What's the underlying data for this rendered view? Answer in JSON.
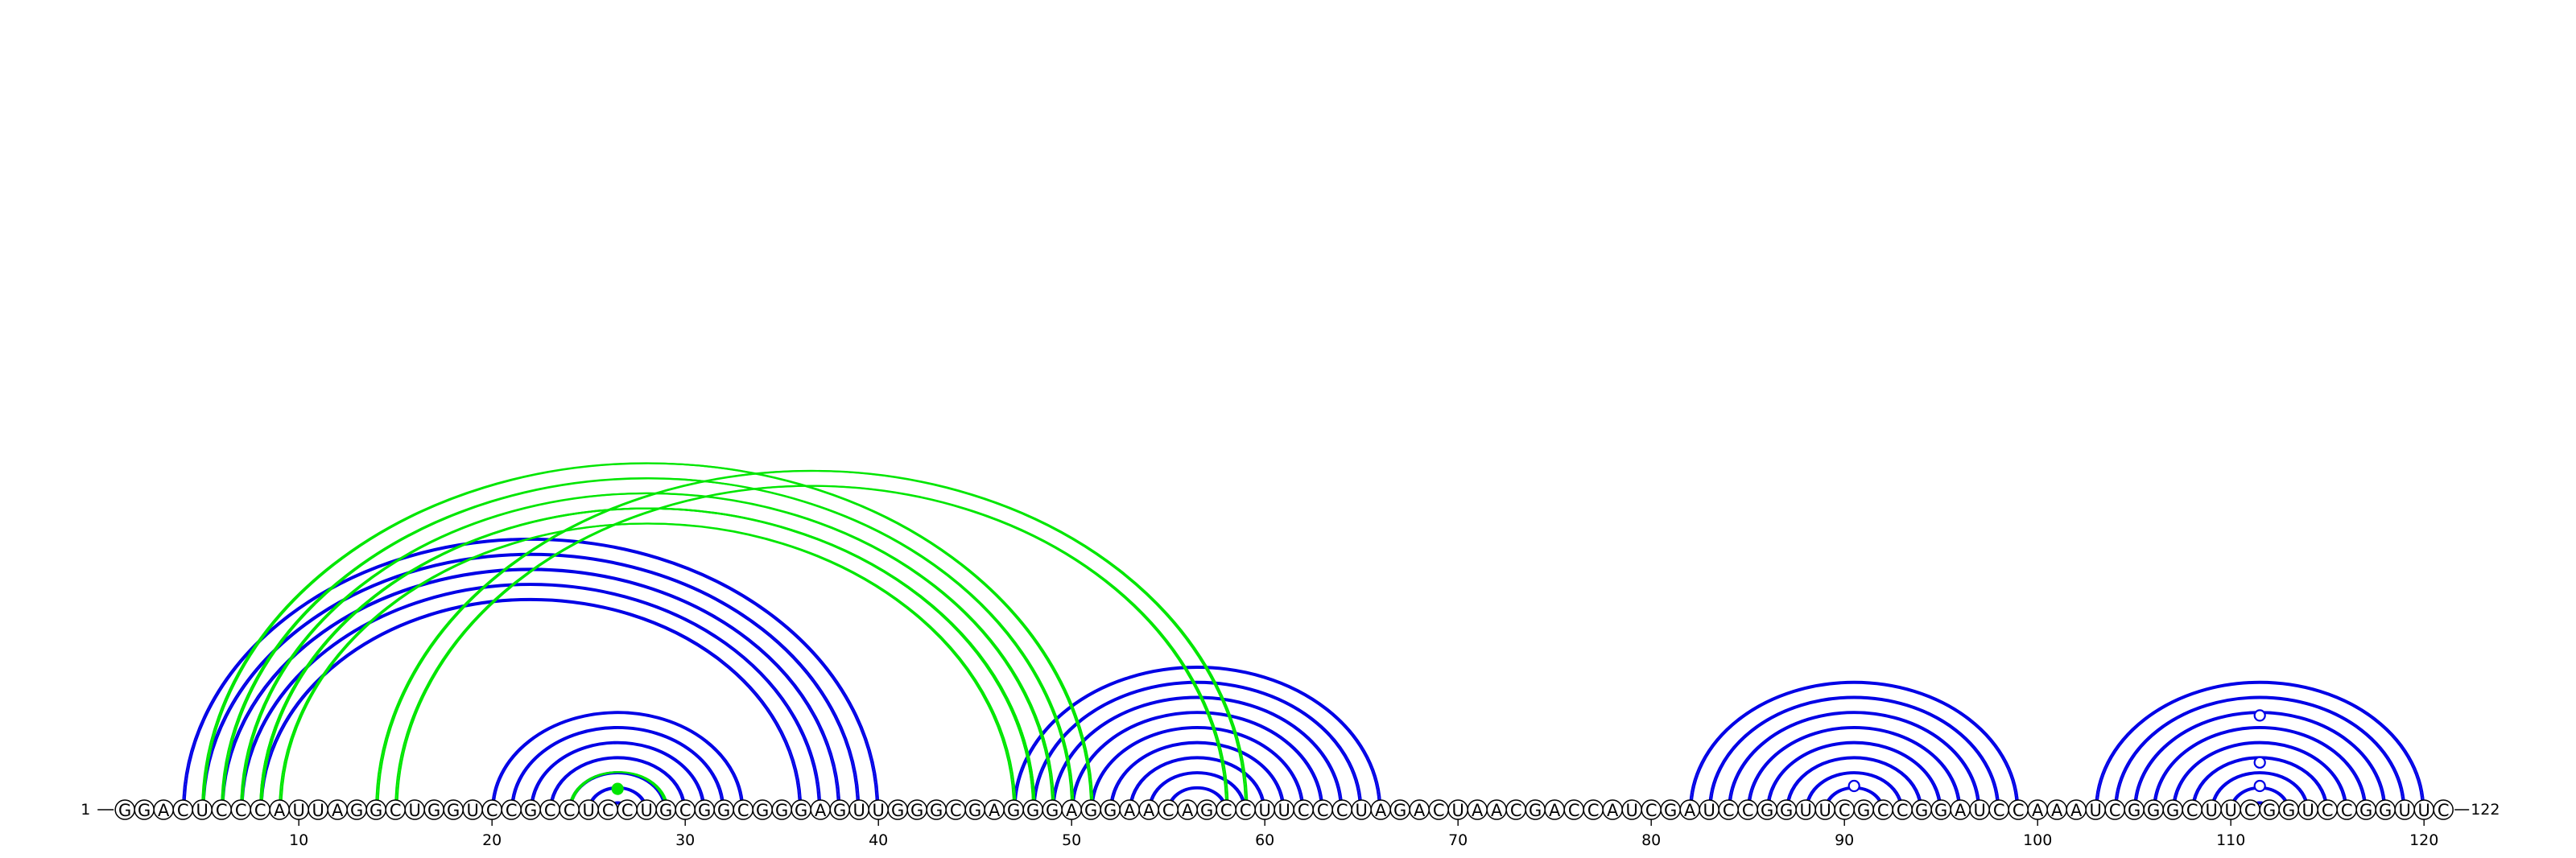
{
  "sequence": "GGACUCCCAUUAGGCUGGUCCGCCUCCUGCGGCGGGAGUUGGGCGAGGGAGGAACAGCCUUCCCUAGACUAACGACCAUCGAUCCGGUUCGCCGGAUCCAAAUCGGGCUUCGGUCCGGUUC",
  "start_label": "1",
  "end_label": "122",
  "ticks": [
    10,
    20,
    30,
    40,
    50,
    60,
    70,
    80,
    90,
    100,
    110,
    120
  ],
  "colors": {
    "blue": "#0000e6",
    "green": "#00e600"
  },
  "blue_helices": [
    {
      "i": 4,
      "j": 40,
      "n": 1
    },
    {
      "i": 5,
      "j": 39,
      "n": 2
    },
    {
      "i": 7,
      "j": 37,
      "n": 2
    },
    {
      "i": 20,
      "j": 33,
      "n": 1
    },
    {
      "i": 21,
      "j": 32,
      "n": 6
    },
    {
      "i": 47,
      "j": 66,
      "n": 1
    },
    {
      "i": 48,
      "j": 65,
      "n": 2
    },
    {
      "i": 50,
      "j": 63,
      "n": 2
    },
    {
      "i": 52,
      "j": 61,
      "n": 1
    },
    {
      "i": 53,
      "j": 60,
      "n": 3
    },
    {
      "i": 82,
      "j": 99,
      "n": 1
    },
    {
      "i": 83,
      "j": 98,
      "n": 7
    },
    {
      "i": 103,
      "j": 120,
      "n": 1
    },
    {
      "i": 104,
      "j": 119,
      "n": 8
    }
  ],
  "green_helices": [
    {
      "i": 5,
      "j": 51,
      "n": 1
    },
    {
      "i": 6,
      "j": 50,
      "n": 3
    },
    {
      "i": 8,
      "j": 48,
      "n": 2
    },
    {
      "i": 14,
      "j": 59,
      "n": 2
    },
    {
      "i": 24,
      "j": 29,
      "n": 1
    }
  ],
  "markers": [
    {
      "pos": 26.5,
      "height": 0.06,
      "color": "green",
      "filled": true
    },
    {
      "pos": 90.5,
      "height": 0.06,
      "color": "blue",
      "filled": false
    },
    {
      "pos": 111.5,
      "height": 0.06,
      "color": "blue",
      "filled": false
    },
    {
      "pos": 111.5,
      "height": 0.19,
      "color": "blue",
      "filled": false
    },
    {
      "pos": 111.5,
      "height": 0.45,
      "color": "blue",
      "filled": false
    }
  ]
}
